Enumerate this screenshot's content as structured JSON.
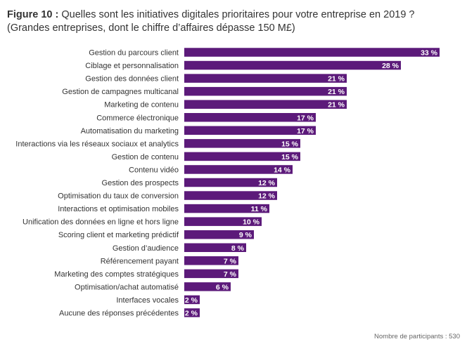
{
  "title_prefix": "Figure 10 :",
  "title": "Quelles sont les initiatives digitales prioritaires pour votre entreprise en 2019 ?",
  "subtitle": "(Grandes entreprises, dont le chiffre d’affaires dépasse 150 M£)",
  "footnote": "Nombre de participants : 530",
  "colors": {
    "bar": "#5c1a7a",
    "label": "#ffffff",
    "text": "#333333"
  },
  "chart_data": {
    "type": "bar",
    "orientation": "horizontal",
    "value_suffix": " %",
    "categories": [
      "Gestion du parcours client",
      "Ciblage et personnalisation",
      "Gestion des données client",
      "Gestion de campagnes multicanal",
      "Marketing de contenu",
      "Commerce électronique",
      "Automatisation du marketing",
      "Interactions via les réseaux sociaux et analytics",
      "Gestion de contenu",
      "Contenu vidéo",
      "Gestion des prospects",
      "Optimisation du taux de conversion",
      "Interactions et optimisation mobiles",
      "Unification des données en ligne et hors ligne",
      "Scoring client et marketing prédictif",
      "Gestion d’audience",
      "Référencement payant",
      "Marketing des comptes stratégiques",
      "Optimisation/achat automatisé",
      "Interfaces vocales",
      "Aucune des réponses précédentes"
    ],
    "values": [
      33,
      28,
      21,
      21,
      21,
      17,
      17,
      15,
      15,
      14,
      12,
      12,
      11,
      10,
      9,
      8,
      7,
      7,
      6,
      2,
      2
    ],
    "xlim": [
      0,
      33
    ]
  }
}
